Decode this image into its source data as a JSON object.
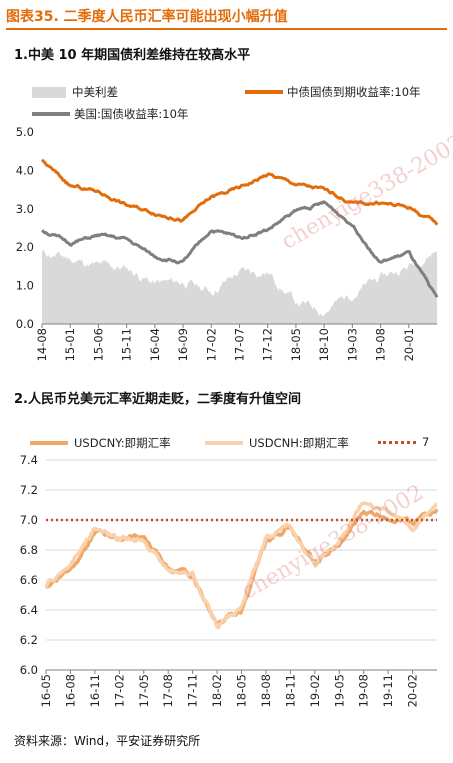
{
  "figure": {
    "title": "图表35.  二季度人民币汇率可能出现小幅升值",
    "source": "资料来源：Wind，平安证券研究所",
    "accent_color": "#e36c0a"
  },
  "watermark": {
    "text": "chenyige338-2002"
  },
  "chart_data": [
    {
      "type": "line",
      "panel_title": "1.中美 10 年期国债利差维持在较高水平",
      "x_ticks": [
        "14-08",
        "15-01",
        "15-06",
        "15-11",
        "16-04",
        "16-09",
        "17-02",
        "17-07",
        "17-12",
        "18-05",
        "18-10",
        "19-03",
        "19-08",
        "20-01"
      ],
      "ylim": [
        0,
        5
      ],
      "y_ticks": [
        0.0,
        1.0,
        2.0,
        3.0,
        4.0,
        5.0
      ],
      "grid": false,
      "legend_position": "top",
      "x_anchors": [
        "14-08",
        "15-01",
        "15-06",
        "15-11",
        "16-04",
        "16-09",
        "17-02",
        "17-07",
        "17-12",
        "18-05",
        "18-10",
        "19-03",
        "19-08",
        "20-01",
        "20-04"
      ],
      "series": [
        {
          "name": "中美利差",
          "kind": "area",
          "color": "#d9d9d9",
          "values": [
            1.85,
            1.7,
            1.5,
            1.45,
            1.05,
            1.1,
            0.85,
            1.35,
            1.35,
            0.55,
            0.35,
            0.8,
            1.2,
            1.5,
            1.95
          ]
        },
        {
          "name": "中债国债到期收益率:10年",
          "kind": "line",
          "color": "#e36c0a",
          "values": [
            4.25,
            3.6,
            3.45,
            3.1,
            2.9,
            2.7,
            3.3,
            3.55,
            3.9,
            3.65,
            3.5,
            3.15,
            3.15,
            3.05,
            2.6
          ]
        },
        {
          "name": "美国:国债收益率:10年",
          "kind": "line",
          "color": "#7f7f7f",
          "values": [
            2.45,
            2.1,
            2.3,
            2.2,
            1.75,
            1.6,
            2.45,
            2.25,
            2.45,
            2.95,
            3.15,
            2.6,
            1.6,
            1.85,
            0.65
          ]
        }
      ]
    },
    {
      "type": "line",
      "panel_title": "2.人民币兑美元汇率近期走贬，二季度有升值空间",
      "x_ticks": [
        "16-05",
        "16-08",
        "16-11",
        "17-02",
        "17-05",
        "17-08",
        "17-11",
        "18-02",
        "18-05",
        "18-08",
        "18-11",
        "19-02",
        "19-05",
        "19-08",
        "19-11",
        "20-02"
      ],
      "ylim": [
        6.0,
        7.4
      ],
      "y_ticks": [
        6.0,
        6.2,
        6.4,
        6.6,
        6.8,
        7.0,
        7.2,
        7.4
      ],
      "grid": true,
      "legend_position": "top",
      "x_anchors": [
        "16-05",
        "16-08",
        "16-11",
        "17-02",
        "17-05",
        "17-08",
        "17-11",
        "18-02",
        "18-05",
        "18-08",
        "18-11",
        "19-02",
        "19-05",
        "19-08",
        "19-11",
        "20-02",
        "20-04"
      ],
      "series": [
        {
          "name": "USDCNY:即期汇率",
          "kind": "line",
          "color": "#f0a868",
          "values": [
            6.55,
            6.68,
            6.92,
            6.88,
            6.89,
            6.67,
            6.62,
            6.32,
            6.4,
            6.85,
            6.95,
            6.72,
            6.82,
            7.05,
            7.03,
            6.98,
            7.08
          ]
        },
        {
          "name": "USDCNH:即期汇率",
          "kind": "line",
          "color": "#f9d2ad",
          "values": [
            6.56,
            6.7,
            6.94,
            6.87,
            6.88,
            6.66,
            6.64,
            6.3,
            6.42,
            6.88,
            6.97,
            6.7,
            6.85,
            7.12,
            7.05,
            6.95,
            7.12
          ]
        },
        {
          "name": "7",
          "kind": "dotted",
          "color": "#c0502a",
          "constant": 7.0
        }
      ]
    }
  ]
}
